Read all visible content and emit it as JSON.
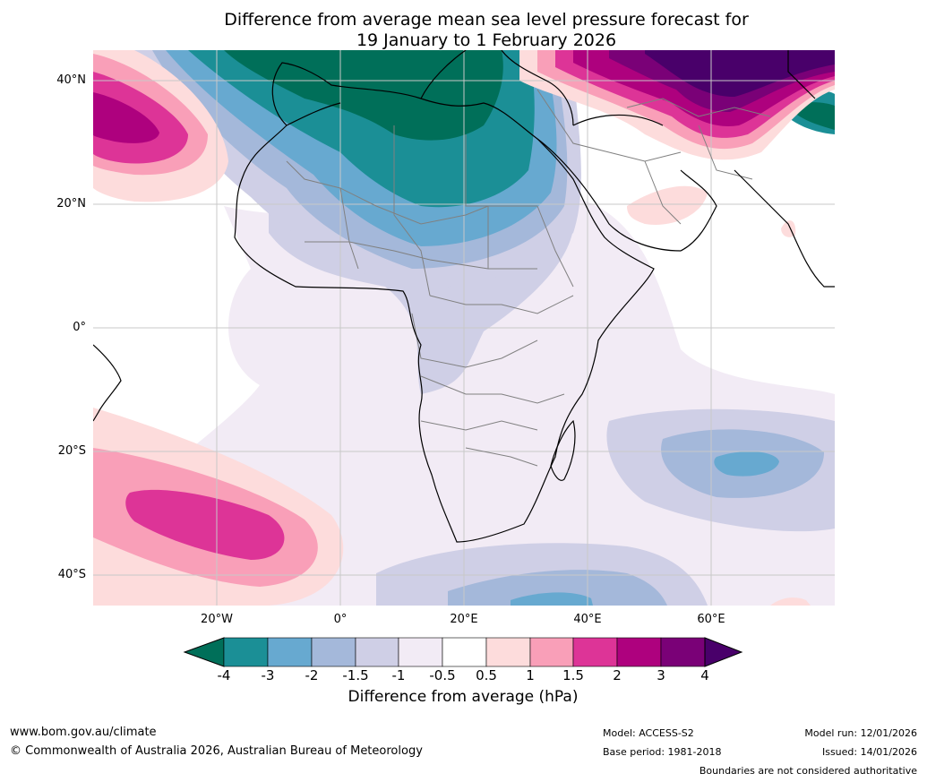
{
  "title": {
    "line1": "Difference from average mean sea level pressure forecast for",
    "line2": "19 January to 1 February 2026"
  },
  "map": {
    "lat_labels": [
      "40°N",
      "20°N",
      "0°",
      "20°S",
      "40°S"
    ],
    "lon_labels": [
      "20°W",
      "0°",
      "20°E",
      "40°E",
      "60°E"
    ],
    "gridline_color": "#c8c8c8",
    "coast_color": "#000000",
    "border_color": "#808080"
  },
  "colorbar": {
    "label": "Difference from average (hPa)",
    "ticks": [
      "-4",
      "-3",
      "-2",
      "-1.5",
      "-1",
      "-0.5",
      "0.5",
      "1",
      "1.5",
      "2",
      "3",
      "4"
    ],
    "colors": {
      "lt_-4": "#006f59",
      "-4_-3": "#1b8f96",
      "-3_-2": "#67a9d0",
      "-2_-1.5": "#a4b8da",
      "-1.5_-1": "#cfcfe6",
      "-1_-0.5": "#f2ebf5",
      "-0.5_0.5": "#ffffff",
      "0.5_1": "#fddcdc",
      "1_1.5": "#f99fb8",
      "1.5_2": "#dd3497",
      "2_3": "#ae017e",
      "3_4": "#7a0177",
      "gt_4": "#49006a"
    }
  },
  "footer": {
    "url": "www.bom.gov.au/climate",
    "copyright": "© Commonwealth of Australia 2026, Australian Bureau of Meteorology",
    "model": "Model: ACCESS-S2",
    "base_period": "Base period: 1981-2018",
    "model_run": "Model run: 12/01/2026",
    "issued": "Issued: 14/01/2026",
    "disclaimer": "Boundaries are not considered authoritative"
  }
}
